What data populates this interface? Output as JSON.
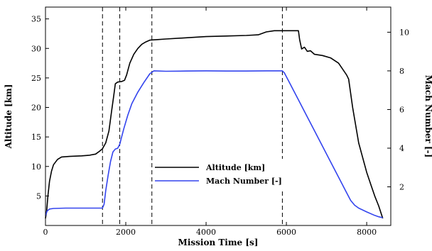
{
  "chart_data": {
    "type": "line",
    "title": "",
    "xlabel": "Mission Time [s]",
    "ylabel_left": "Altitude [km]",
    "ylabel_right": "Mach Number [-]",
    "xlim": [
      0,
      8600
    ],
    "ylim_left": [
      0,
      37
    ],
    "ylim_right": [
      0,
      11.3
    ],
    "x_ticks": [
      0,
      2000,
      4000,
      6000,
      8000
    ],
    "y_left_ticks": [
      5,
      10,
      15,
      20,
      25,
      30,
      35
    ],
    "y_right_ticks": [
      2,
      4,
      6,
      8,
      10
    ],
    "grid": false,
    "legend_position": "center",
    "vlines": [
      1420,
      1850,
      2650,
      5900
    ],
    "series": [
      {
        "name": "Altitude [km]",
        "axis": "left",
        "color": "#000000",
        "points": [
          [
            0,
            1.2
          ],
          [
            30,
            2.5
          ],
          [
            60,
            5
          ],
          [
            100,
            7.5
          ],
          [
            150,
            9.2
          ],
          [
            200,
            10.3
          ],
          [
            300,
            11.2
          ],
          [
            400,
            11.6
          ],
          [
            600,
            11.7
          ],
          [
            900,
            11.8
          ],
          [
            1100,
            11.9
          ],
          [
            1250,
            12.1
          ],
          [
            1350,
            12.6
          ],
          [
            1420,
            13
          ],
          [
            1500,
            14
          ],
          [
            1580,
            16
          ],
          [
            1650,
            19.5
          ],
          [
            1700,
            22
          ],
          [
            1740,
            24
          ],
          [
            1800,
            24.3
          ],
          [
            1900,
            24.4
          ],
          [
            1970,
            24.6
          ],
          [
            2020,
            25.5
          ],
          [
            2100,
            27.5
          ],
          [
            2200,
            29
          ],
          [
            2300,
            30
          ],
          [
            2400,
            30.7
          ],
          [
            2500,
            31.1
          ],
          [
            2600,
            31.4
          ],
          [
            2800,
            31.5
          ],
          [
            3000,
            31.6
          ],
          [
            3500,
            31.8
          ],
          [
            4000,
            32
          ],
          [
            4500,
            32.1
          ],
          [
            5000,
            32.2
          ],
          [
            5300,
            32.3
          ],
          [
            5500,
            32.8
          ],
          [
            5700,
            33
          ],
          [
            6000,
            33
          ],
          [
            6300,
            33
          ],
          [
            6330,
            31.5
          ],
          [
            6380,
            29.9
          ],
          [
            6450,
            30.2
          ],
          [
            6520,
            29.5
          ],
          [
            6600,
            29.6
          ],
          [
            6700,
            29
          ],
          [
            6900,
            28.8
          ],
          [
            7100,
            28.4
          ],
          [
            7300,
            27.5
          ],
          [
            7500,
            25.5
          ],
          [
            7550,
            24.8
          ],
          [
            7650,
            20
          ],
          [
            7800,
            14
          ],
          [
            8000,
            9
          ],
          [
            8100,
            7
          ],
          [
            8200,
            5
          ],
          [
            8300,
            3.3
          ],
          [
            8400,
            1.2
          ]
        ]
      },
      {
        "name": "Mach Number [-]",
        "axis": "right",
        "color": "#3344ee",
        "points": [
          [
            0,
            0.5
          ],
          [
            40,
            0.75
          ],
          [
            100,
            0.85
          ],
          [
            200,
            0.88
          ],
          [
            500,
            0.9
          ],
          [
            1000,
            0.9
          ],
          [
            1420,
            0.9
          ],
          [
            1460,
            1.1
          ],
          [
            1500,
            1.8
          ],
          [
            1560,
            2.6
          ],
          [
            1620,
            3.3
          ],
          [
            1680,
            3.8
          ],
          [
            1740,
            3.95
          ],
          [
            1800,
            4
          ],
          [
            1850,
            4.2
          ],
          [
            1950,
            5
          ],
          [
            2050,
            5.7
          ],
          [
            2150,
            6.3
          ],
          [
            2300,
            6.9
          ],
          [
            2450,
            7.4
          ],
          [
            2600,
            7.85
          ],
          [
            2700,
            8
          ],
          [
            3000,
            7.98
          ],
          [
            3500,
            7.99
          ],
          [
            4000,
            8
          ],
          [
            4500,
            7.99
          ],
          [
            5000,
            7.99
          ],
          [
            5500,
            8
          ],
          [
            5900,
            8
          ],
          [
            5950,
            7.9
          ],
          [
            6100,
            7.3
          ],
          [
            6300,
            6.5
          ],
          [
            6500,
            5.7
          ],
          [
            6700,
            4.9
          ],
          [
            6900,
            4.1
          ],
          [
            7100,
            3.3
          ],
          [
            7300,
            2.5
          ],
          [
            7500,
            1.7
          ],
          [
            7600,
            1.3
          ],
          [
            7700,
            1.05
          ],
          [
            7800,
            0.9
          ],
          [
            8000,
            0.7
          ],
          [
            8200,
            0.52
          ],
          [
            8300,
            0.45
          ],
          [
            8400,
            0.4
          ]
        ]
      }
    ]
  }
}
